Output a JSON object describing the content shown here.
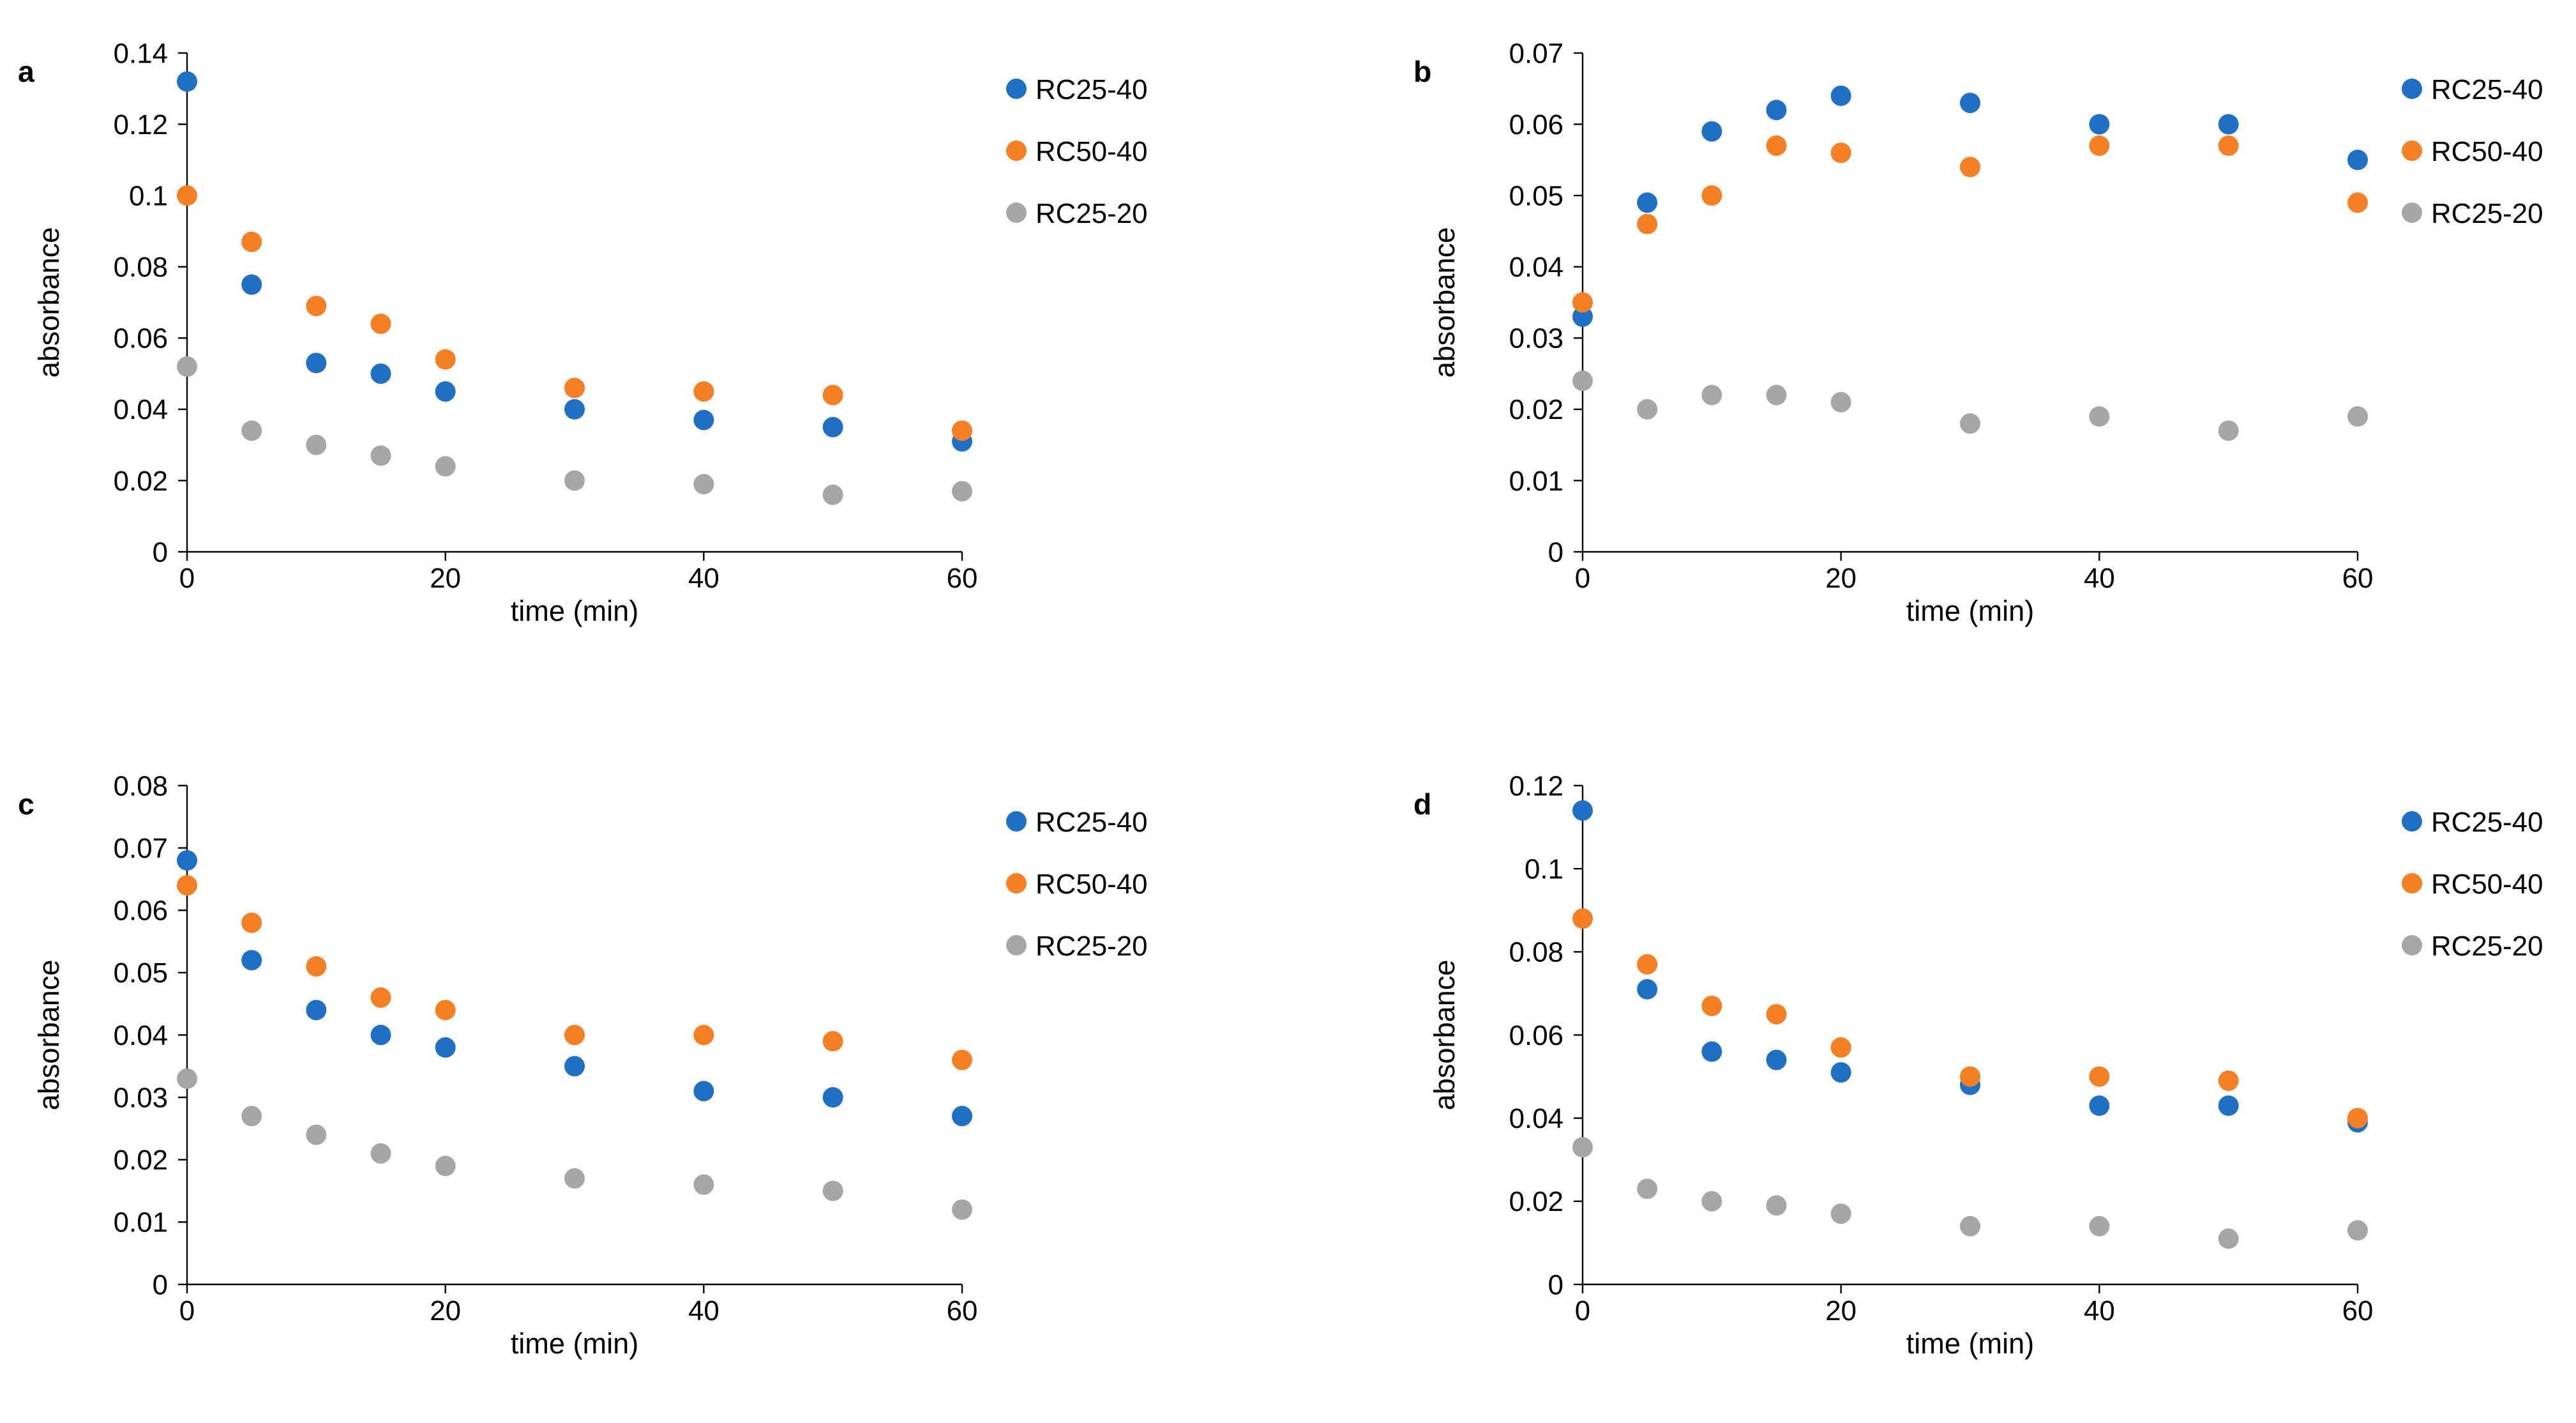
{
  "chart_data": [
    {
      "panel": "a",
      "type": "scatter",
      "xlabel": "time (min)",
      "ylabel": "absorbance",
      "xlim": [
        0,
        60
      ],
      "ylim": [
        0,
        0.14
      ],
      "x_ticks": [
        0,
        20,
        40,
        60
      ],
      "y_ticks": [
        0,
        0.02,
        0.04,
        0.06,
        0.08,
        0.1,
        0.12,
        0.14
      ],
      "y_tick_labels": [
        "0",
        "0.02",
        "0.04",
        "0.06",
        "0.08",
        "0.1",
        "0.12",
        "0.14"
      ],
      "legend_position": "top-right",
      "x": [
        0,
        5,
        10,
        15,
        20,
        30,
        40,
        50,
        60
      ],
      "series": [
        {
          "name": "RC25-40",
          "color": "#1f6fc5",
          "values": [
            0.132,
            0.075,
            0.053,
            0.05,
            0.045,
            0.04,
            0.037,
            0.035,
            0.031
          ]
        },
        {
          "name": "RC50-40",
          "color": "#f57f25",
          "values": [
            0.1,
            0.087,
            0.069,
            0.064,
            0.054,
            0.046,
            0.045,
            0.044,
            0.034
          ]
        },
        {
          "name": "RC25-20",
          "color": "#a6a6a6",
          "values": [
            0.052,
            0.034,
            0.03,
            0.027,
            0.024,
            0.02,
            0.019,
            0.016,
            0.017
          ]
        }
      ]
    },
    {
      "panel": "b",
      "type": "scatter",
      "xlabel": "time (min)",
      "ylabel": "absorbance",
      "xlim": [
        0,
        60
      ],
      "ylim": [
        0,
        0.07
      ],
      "x_ticks": [
        0,
        20,
        40,
        60
      ],
      "y_ticks": [
        0,
        0.01,
        0.02,
        0.03,
        0.04,
        0.05,
        0.06,
        0.07
      ],
      "y_tick_labels": [
        "0",
        "0.01",
        "0.02",
        "0.03",
        "0.04",
        "0.05",
        "0.06",
        "0.07"
      ],
      "legend_position": "top-right",
      "x": [
        0,
        5,
        10,
        15,
        20,
        30,
        40,
        50,
        60
      ],
      "series": [
        {
          "name": "RC25-40",
          "color": "#1f6fc5",
          "values": [
            0.033,
            0.049,
            0.059,
            0.062,
            0.064,
            0.063,
            0.06,
            0.06,
            0.055
          ]
        },
        {
          "name": "RC50-40",
          "color": "#f57f25",
          "values": [
            0.035,
            0.046,
            0.05,
            0.057,
            0.056,
            0.054,
            0.057,
            0.057,
            0.049
          ]
        },
        {
          "name": "RC25-20",
          "color": "#a6a6a6",
          "values": [
            0.024,
            0.02,
            0.022,
            0.022,
            0.021,
            0.018,
            0.019,
            0.017,
            0.019
          ]
        }
      ]
    },
    {
      "panel": "c",
      "type": "scatter",
      "xlabel": "time (min)",
      "ylabel": "absorbance",
      "xlim": [
        0,
        60
      ],
      "ylim": [
        0,
        0.08
      ],
      "x_ticks": [
        0,
        20,
        40,
        60
      ],
      "y_ticks": [
        0,
        0.01,
        0.02,
        0.03,
        0.04,
        0.05,
        0.06,
        0.07,
        0.08
      ],
      "y_tick_labels": [
        "0",
        "0.01",
        "0.02",
        "0.03",
        "0.04",
        "0.05",
        "0.06",
        "0.07",
        "0.08"
      ],
      "legend_position": "top-right",
      "x": [
        0,
        5,
        10,
        15,
        20,
        30,
        40,
        50,
        60
      ],
      "series": [
        {
          "name": "RC25-40",
          "color": "#1f6fc5",
          "values": [
            0.068,
            0.052,
            0.044,
            0.04,
            0.038,
            0.035,
            0.031,
            0.03,
            0.027
          ]
        },
        {
          "name": "RC50-40",
          "color": "#f57f25",
          "values": [
            0.064,
            0.058,
            0.051,
            0.046,
            0.044,
            0.04,
            0.04,
            0.039,
            0.036
          ]
        },
        {
          "name": "RC25-20",
          "color": "#a6a6a6",
          "values": [
            0.033,
            0.027,
            0.024,
            0.021,
            0.019,
            0.017,
            0.016,
            0.015,
            0.012
          ]
        }
      ]
    },
    {
      "panel": "d",
      "type": "scatter",
      "xlabel": "time (min)",
      "ylabel": "absorbance",
      "xlim": [
        0,
        60
      ],
      "ylim": [
        0,
        0.12
      ],
      "x_ticks": [
        0,
        20,
        40,
        60
      ],
      "y_ticks": [
        0,
        0.02,
        0.04,
        0.06,
        0.08,
        0.1,
        0.12
      ],
      "y_tick_labels": [
        "0",
        "0.02",
        "0.04",
        "0.06",
        "0.08",
        "0.1",
        "0.12"
      ],
      "legend_position": "top-right",
      "x": [
        0,
        5,
        10,
        15,
        20,
        30,
        40,
        50,
        60
      ],
      "series": [
        {
          "name": "RC25-40",
          "color": "#1f6fc5",
          "values": [
            0.114,
            0.071,
            0.056,
            0.054,
            0.051,
            0.048,
            0.043,
            0.043,
            0.039
          ]
        },
        {
          "name": "RC50-40",
          "color": "#f57f25",
          "values": [
            0.088,
            0.077,
            0.067,
            0.065,
            0.057,
            0.05,
            0.05,
            0.049,
            0.04
          ]
        },
        {
          "name": "RC25-20",
          "color": "#a6a6a6",
          "values": [
            0.033,
            0.023,
            0.02,
            0.019,
            0.017,
            0.014,
            0.014,
            0.011,
            0.013
          ]
        }
      ]
    }
  ]
}
